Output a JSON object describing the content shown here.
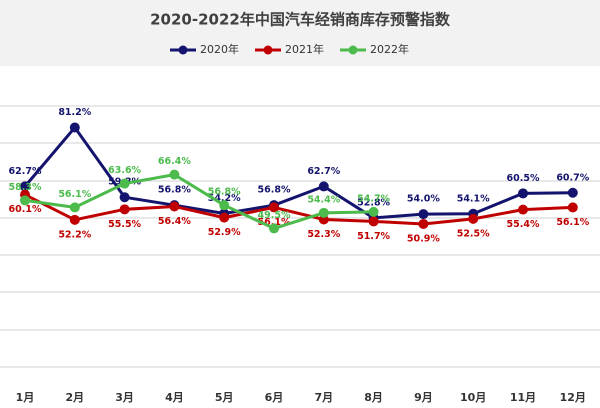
{
  "chart_data": {
    "type": "line",
    "title": "2020-2022年中国汽车经销商库存预警指数",
    "categories": [
      "1月",
      "2月",
      "3月",
      "4月",
      "5月",
      "6月",
      "7月",
      "8月",
      "9月",
      "10月",
      "11月",
      "12月"
    ],
    "ylim": [
      0,
      120
    ],
    "legend": "top",
    "series": [
      {
        "name": "2020年",
        "color": "#14146e",
        "values": [
          62.7,
          81.2,
          59.3,
          56.8,
          54.2,
          56.8,
          62.7,
          52.8,
          54.0,
          54.1,
          60.5,
          60.7
        ],
        "value_labels": [
          "62.7%",
          "81.2%",
          "59.3%",
          "56.8%",
          "54.2%",
          "56.8%",
          "62.7%",
          "52.8%",
          "54.0%",
          "54.1%",
          "60.5%",
          "60.7%"
        ]
      },
      {
        "name": "2021年",
        "color": "#c00000",
        "values": [
          60.1,
          52.2,
          55.5,
          56.4,
          52.9,
          56.1,
          52.3,
          51.7,
          50.9,
          52.5,
          55.4,
          56.1
        ],
        "value_labels": [
          "60.1%",
          "52.2%",
          "55.5%",
          "56.4%",
          "52.9%",
          "56.1%",
          "52.3%",
          "51.7%",
          "50.9%",
          "52.5%",
          "55.4%",
          "56.1%"
        ]
      },
      {
        "name": "2022年",
        "color": "#4cbb4c",
        "values": [
          58.3,
          56.1,
          63.6,
          66.4,
          56.8,
          49.5,
          54.4,
          54.7,
          null,
          null,
          null,
          null
        ],
        "value_labels": [
          "58.3%",
          "56.1%",
          "63.6%",
          "66.4%",
          "56.8%",
          "49.5%",
          "54.4%",
          "54.7%",
          null,
          null,
          null,
          null
        ]
      }
    ]
  }
}
